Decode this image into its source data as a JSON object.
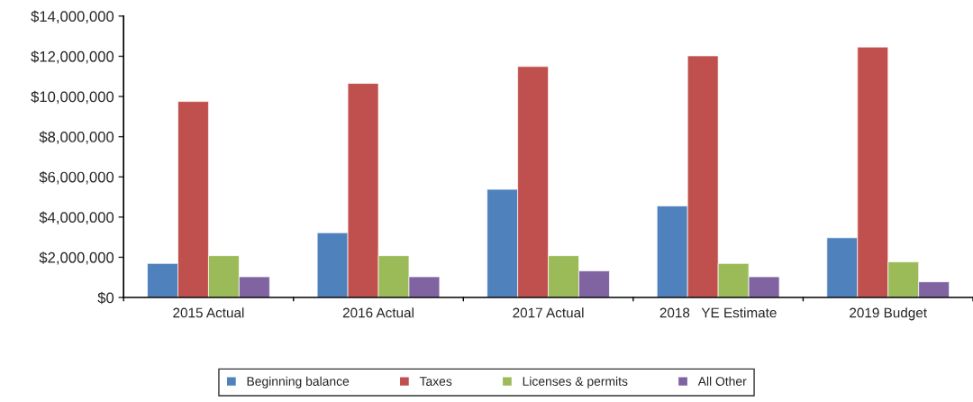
{
  "chart_data": {
    "type": "bar",
    "categories": [
      "2015 Actual",
      "2016 Actual",
      "2017 Actual",
      "2018   YE Estimate",
      "2019 Budget"
    ],
    "series": [
      {
        "name": "Beginning balance",
        "color": "#4f81bd",
        "values": [
          1690000,
          3220000,
          5380000,
          4550000,
          2970000
        ]
      },
      {
        "name": "Taxes",
        "color": "#c0504d",
        "values": [
          9750000,
          10650000,
          11490000,
          12020000,
          12460000
        ]
      },
      {
        "name": "Licenses & permits",
        "color": "#9bbb59",
        "values": [
          2080000,
          2080000,
          2080000,
          1690000,
          1770000
        ]
      },
      {
        "name": "All Other",
        "color": "#8064a2",
        "values": [
          1030000,
          1030000,
          1320000,
          1030000,
          780000
        ]
      }
    ],
    "ylim": [
      0,
      14000000
    ],
    "yticks": [
      {
        "value": 0,
        "label": "$0"
      },
      {
        "value": 2000000,
        "label": "$2,000,000"
      },
      {
        "value": 4000000,
        "label": "$4,000,000"
      },
      {
        "value": 6000000,
        "label": "$6,000,000"
      },
      {
        "value": 8000000,
        "label": "$8,000,000"
      },
      {
        "value": 10000000,
        "label": "$10,000,000"
      },
      {
        "value": 12000000,
        "label": "$12,000,000"
      },
      {
        "value": 14000000,
        "label": "$14,000,000"
      }
    ],
    "grid": false,
    "legend": "bottom"
  }
}
